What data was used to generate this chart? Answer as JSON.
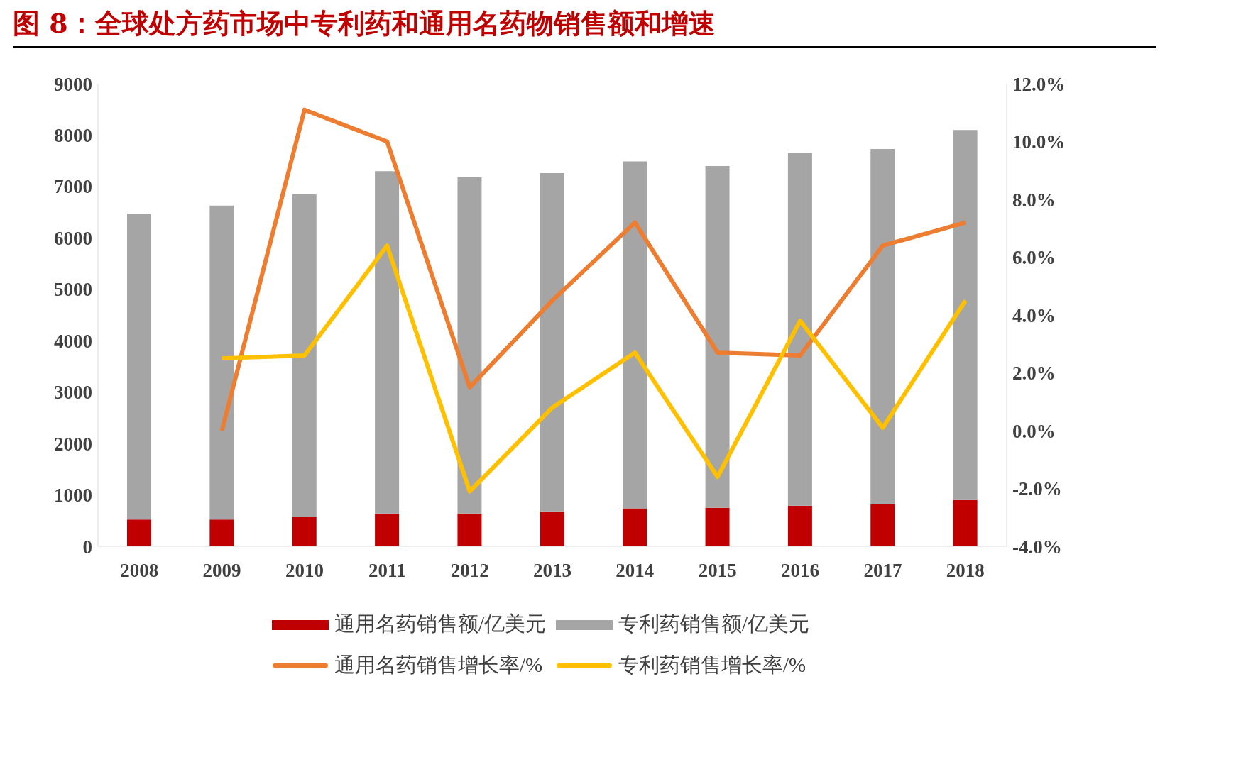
{
  "chart_data": {
    "type": "bar",
    "title": "图 8：全球处方药市场中专利药和通用名药物销售额和增速",
    "categories": [
      "2008",
      "2009",
      "2010",
      "2011",
      "2012",
      "2013",
      "2014",
      "2015",
      "2016",
      "2017",
      "2018"
    ],
    "stacked": true,
    "series": [
      {
        "name": "通用名药销售额/亿美元",
        "color": "#c00000",
        "values": [
          520,
          520,
          580,
          640,
          640,
          680,
          740,
          750,
          790,
          820,
          900
        ]
      },
      {
        "name": "专利药销售额/亿美元",
        "color": "#a5a5a5",
        "values": [
          5950,
          6110,
          6270,
          6660,
          6540,
          6580,
          6750,
          6650,
          6870,
          6910,
          7200
        ]
      },
      {
        "name": "通用名药销售增长率/%",
        "color": "#ed7d31",
        "type": "line",
        "axis": "y2",
        "values": [
          null,
          0.0,
          11.1,
          10.0,
          1.5,
          4.5,
          7.2,
          2.7,
          2.6,
          6.4,
          7.2
        ]
      },
      {
        "name": "专利药销售增长率/%",
        "color": "#ffc000",
        "type": "line",
        "axis": "y2",
        "values": [
          null,
          2.5,
          2.6,
          6.4,
          -2.1,
          0.8,
          2.7,
          -1.6,
          3.8,
          0.1,
          4.5
        ]
      }
    ],
    "ylim": [
      0,
      9000
    ],
    "yticks": [
      0,
      1000,
      2000,
      3000,
      4000,
      5000,
      6000,
      7000,
      8000,
      9000
    ],
    "y2lim": [
      -4,
      12
    ],
    "y2ticks": [
      {
        "value": -4,
        "label": "-4.0%"
      },
      {
        "value": -2,
        "label": "-2.0%"
      },
      {
        "value": 0,
        "label": "0.0%"
      },
      {
        "value": 2,
        "label": "2.0%"
      },
      {
        "value": 4,
        "label": "4.0%"
      },
      {
        "value": 6,
        "label": "6.0%"
      },
      {
        "value": 8,
        "label": "8.0%"
      },
      {
        "value": 10,
        "label": "10.0%"
      },
      {
        "value": 12,
        "label": "12.0%"
      }
    ],
    "legend": "bottom",
    "marker": "none",
    "line_style": "solid"
  }
}
